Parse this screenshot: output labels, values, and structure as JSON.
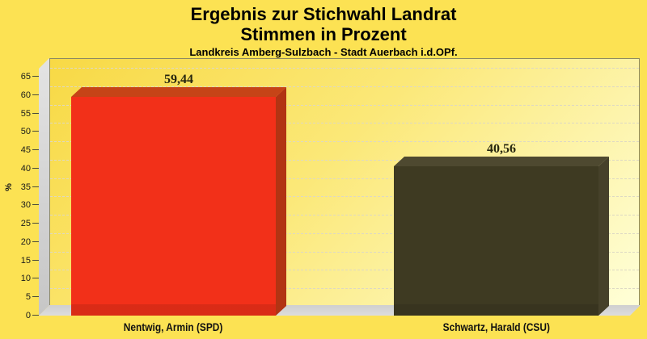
{
  "title": {
    "line1": "Ergebnis zur Stichwahl Landrat",
    "line2": "Stimmen in Prozent",
    "line3": "Landkreis Amberg-Sulzbach - Stadt Auerbach i.d.OPf."
  },
  "chart_data": {
    "type": "bar",
    "style": "3d-column",
    "title": "Ergebnis zur Stichwahl Landrat",
    "subtitle": "Stimmen in Prozent",
    "subtitle2": "Landkreis Amberg-Sulzbach - Stadt Auerbach i.d.OPf.",
    "ylabel": "%",
    "ylim": [
      0,
      65
    ],
    "ytick_step": 5,
    "grid": true,
    "legend": "none",
    "categories": [
      "Nentwig, Armin (SPD)",
      "Schwartz, Harald (CSU)"
    ],
    "values": [
      59.44,
      40.56
    ],
    "value_labels": [
      "59,44",
      "40,56"
    ],
    "bar_colors": [
      {
        "front": "#f23019",
        "top": "#c64417",
        "side": "#b23413"
      },
      {
        "front": "#3e3a22",
        "top": "#4e4930",
        "side": "#46412a"
      }
    ],
    "background_color": "#fce253",
    "wall_gradient": [
      "#f8d945",
      "#ffffd8"
    ]
  }
}
